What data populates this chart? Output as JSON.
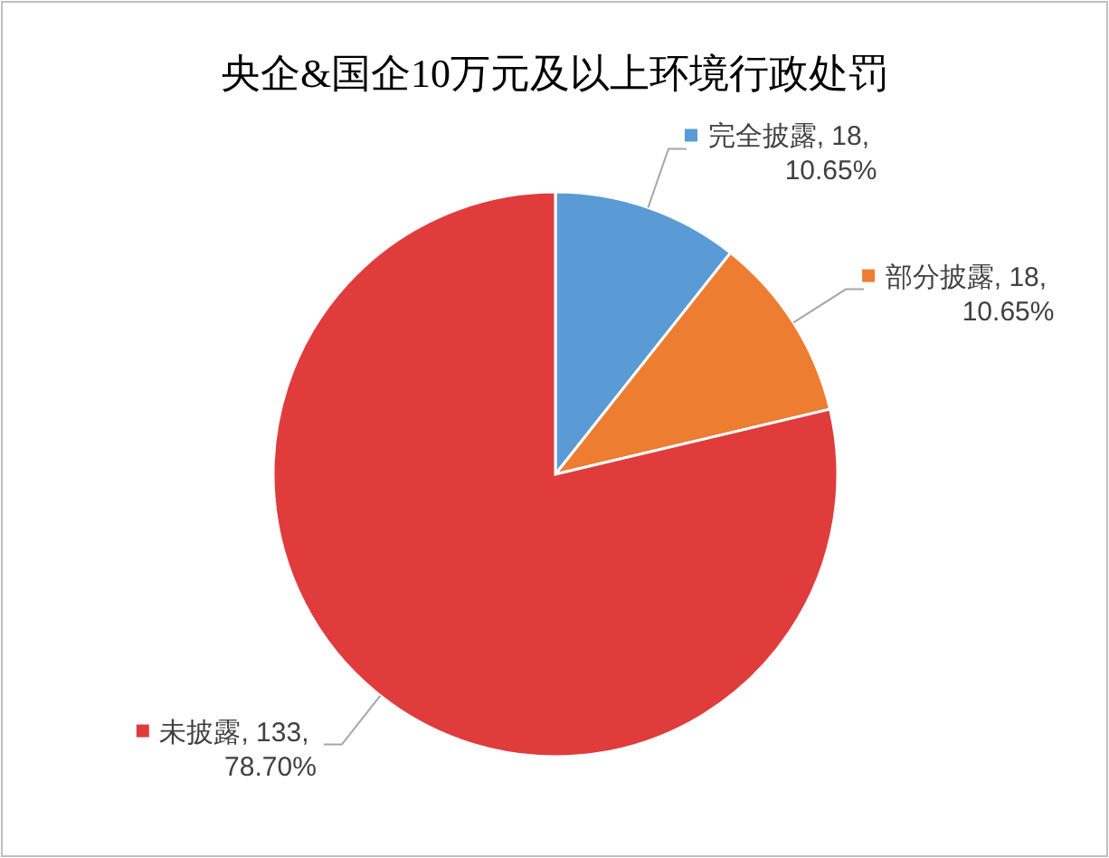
{
  "chart_data": {
    "type": "pie",
    "title": "央企&国企10万元及以上环境行政处罚",
    "categories": [
      "完全披露",
      "部分披露",
      "未披露"
    ],
    "values": [
      18,
      18,
      133
    ],
    "colors": [
      "#5b9bd5",
      "#ed7d31",
      "#e03c3c"
    ],
    "value_labels": [
      "18, 10.65%",
      "18, 10.65%",
      "133, 78.70%"
    ],
    "legend": "top right"
  }
}
